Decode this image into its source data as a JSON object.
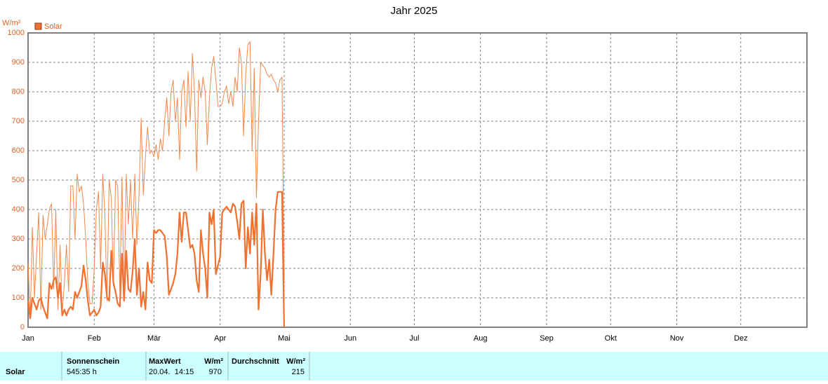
{
  "chart_data": {
    "type": "line",
    "title": "Jahr 2025",
    "y_label": "W/m²",
    "x": [
      0,
      1,
      2,
      3,
      4,
      5,
      6,
      7,
      8,
      9,
      10,
      11,
      12,
      13,
      14,
      15,
      16,
      17,
      18,
      19,
      20,
      21,
      22,
      23,
      24,
      25,
      26,
      27,
      28,
      29,
      30,
      31,
      32,
      33,
      34,
      35,
      36,
      37,
      38,
      39,
      40,
      41,
      42,
      43,
      44,
      45,
      46,
      47,
      48,
      49,
      50,
      51,
      52,
      53,
      54,
      55,
      56,
      57,
      58,
      59,
      60,
      61,
      62,
      63,
      64,
      65,
      66,
      67,
      68,
      69,
      70,
      71,
      72,
      73,
      74,
      75,
      76,
      77,
      78,
      79,
      80,
      81,
      82,
      83,
      84,
      85,
      86,
      87,
      88,
      89,
      90,
      91,
      92,
      93,
      94,
      95,
      96,
      97,
      98,
      99,
      100,
      101,
      102,
      103,
      104,
      105,
      106,
      107,
      108,
      109,
      110,
      111,
      112,
      113,
      114,
      115,
      116,
      117,
      118,
      119,
      120
    ],
    "series": [
      {
        "name": "Solar",
        "color": "#f07030",
        "width": 2.2,
        "values": [
          90,
          30,
          100,
          80,
          60,
          90,
          100,
          70,
          50,
          30,
          150,
          130,
          160,
          170,
          100,
          150,
          40,
          60,
          40,
          60,
          70,
          60,
          120,
          100,
          120,
          140,
          210,
          160,
          90,
          40,
          50,
          60,
          40,
          50,
          70,
          220,
          180,
          100,
          90,
          260,
          150,
          120,
          80,
          70,
          250,
          90,
          260,
          130,
          120,
          190,
          300,
          110,
          200,
          70,
          120,
          60,
          220,
          160,
          150,
          330,
          320,
          330,
          330,
          320,
          310,
          240,
          110,
          130,
          150,
          180,
          250,
          390,
          290,
          390,
          390,
          330,
          270,
          280,
          250,
          160,
          120,
          330,
          250,
          200,
          100,
          390,
          350,
          400,
          180,
          210,
          240,
          390,
          400,
          410,
          400,
          390,
          420,
          410,
          360,
          300,
          420,
          430,
          200,
          340,
          250,
          390,
          280,
          420,
          60,
          180,
          400,
          250,
          160,
          230,
          110,
          250,
          400,
          460,
          460,
          460,
          0
        ]
      },
      {
        "color": "#f4874a",
        "width": 1,
        "values": [
          220,
          30,
          340,
          100,
          250,
          390,
          60,
          380,
          300,
          350,
          400,
          420,
          130,
          400,
          60,
          280,
          50,
          150,
          280,
          120,
          480,
          480,
          300,
          520,
          460,
          480,
          420,
          300,
          150,
          80,
          80,
          200,
          400,
          460,
          200,
          520,
          380,
          90,
          500,
          440,
          140,
          500,
          480,
          120,
          510,
          100,
          520,
          350,
          500,
          300,
          520,
          280,
          450,
          710,
          450,
          580,
          680,
          590,
          600,
          580,
          620,
          570,
          640,
          600,
          700,
          780,
          650,
          800,
          840,
          700,
          780,
          570,
          800,
          840,
          680,
          870,
          700,
          930,
          800,
          530,
          840,
          780,
          850,
          800,
          620,
          780,
          880,
          920,
          840,
          750,
          750,
          760,
          800,
          820,
          760,
          800,
          750,
          850,
          800,
          950,
          900,
          650,
          860,
          960,
          970,
          600,
          880,
          440,
          700,
          900,
          890,
          880,
          860,
          850,
          860,
          840,
          830,
          800,
          840,
          850,
          160
        ]
      }
    ],
    "xlim": [
      0,
      365
    ],
    "xticks": [
      {
        "value": 0,
        "label": "Jan"
      },
      {
        "value": 31,
        "label": "Feb"
      },
      {
        "value": 59,
        "label": "Mär"
      },
      {
        "value": 90,
        "label": "Apr"
      },
      {
        "value": 120,
        "label": "Mai"
      },
      {
        "value": 151,
        "label": "Jun"
      },
      {
        "value": 181,
        "label": "Jul"
      },
      {
        "value": 212,
        "label": "Aug"
      },
      {
        "value": 243,
        "label": "Sep"
      },
      {
        "value": 273,
        "label": "Okt"
      },
      {
        "value": 304,
        "label": "Nov"
      },
      {
        "value": 334,
        "label": "Dez"
      }
    ],
    "ylim": [
      0,
      1000
    ],
    "yticks": [
      0,
      100,
      200,
      300,
      400,
      500,
      600,
      700,
      800,
      900,
      1000
    ],
    "grid": true,
    "legend": "top-left",
    "axis_color": "#e06020"
  },
  "table": {
    "row_label": "Solar",
    "columns": [
      {
        "header": "Sonnenschein",
        "value": "545:35 h"
      },
      {
        "header": "MaxWert",
        "unit": "W/m²",
        "time": "20.04.  14:15",
        "value": 970
      },
      {
        "header": "Durchschnitt",
        "unit": "W/m²",
        "value": 215
      }
    ]
  }
}
